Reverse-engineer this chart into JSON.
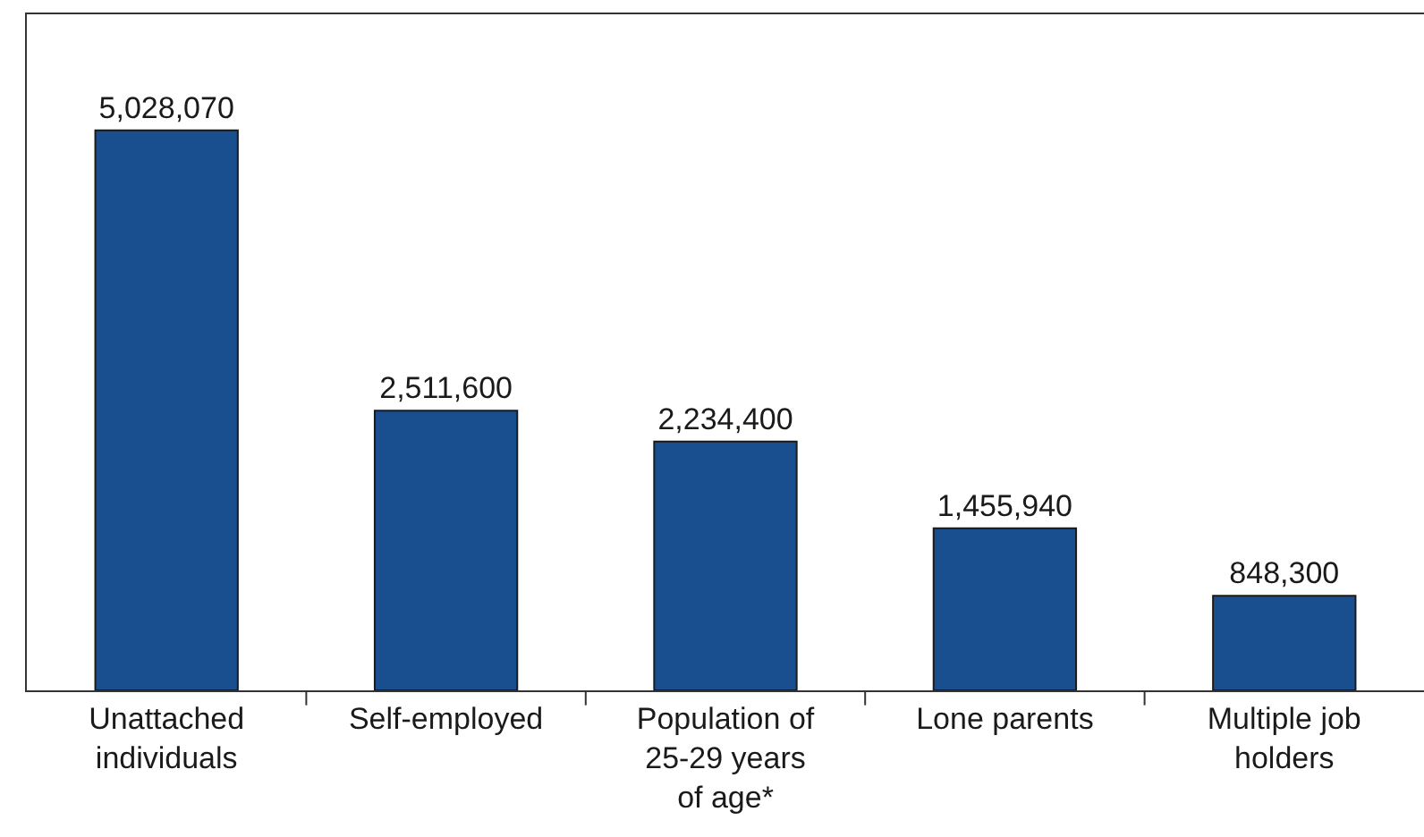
{
  "chart_data": {
    "type": "bar",
    "categories": [
      "Unattached individuals",
      "Self-employed",
      "Population of 25-29 years of age*",
      "Lone parents",
      "Multiple job holders"
    ],
    "values": [
      5028070,
      2511600,
      2234400,
      1455940,
      848300
    ],
    "color": "#1a4f8f",
    "tick_labels": "x",
    "data_labels": true,
    "value_labels": [
      "5,028,070",
      "2,511,600",
      "2,234,400",
      "1,455,940",
      "848,300"
    ],
    "grid": false,
    "legend": false
  }
}
